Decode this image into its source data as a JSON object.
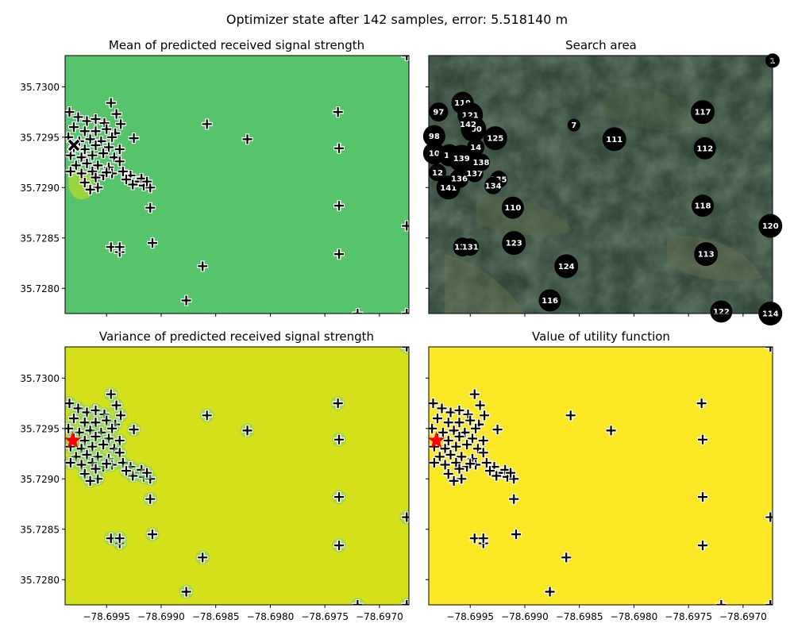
{
  "figure": {
    "suptitle": "Optimizer state after 142 samples, error: 5.518140 m"
  },
  "axes": {
    "xlim": [
      -78.69988,
      -78.69673
    ],
    "ylim": [
      35.72775,
      35.73031
    ],
    "xticks": [
      -78.6995,
      -78.699,
      -78.6985,
      -78.698,
      -78.6975,
      -78.697
    ],
    "xtick_labels": [
      "−78.6995",
      "−78.6990",
      "−78.6985",
      "−78.6980",
      "−78.6975",
      "−78.6970"
    ],
    "yticks": [
      35.728,
      35.7285,
      35.729,
      35.7295,
      35.73
    ],
    "ytick_labels": [
      "35.7280",
      "35.7285",
      "35.7290",
      "35.7295",
      "35.7300"
    ],
    "sharex": true,
    "sharey": true
  },
  "colors": {
    "mean_fill": "#56c46a",
    "variance_fill": "#d4e01a",
    "utility_fill": "#fbe723",
    "mean_blob": "#9bd43c",
    "estimate_star": "#ff0000",
    "prediction_marker": "#000000",
    "satellite_base": "#33493a"
  },
  "chart_data": [
    {
      "type": "heatmap",
      "title": "Mean of predicted received signal strength",
      "background": "mean",
      "markers": [
        "samples-plus",
        "predicted-x"
      ]
    },
    {
      "type": "scatter",
      "title": "Search area",
      "background": "satellite",
      "series": [
        {
          "points": [
            {
              "label": "1",
              "x": -78.69673,
              "y": 35.73026,
              "r": 9
            },
            {
              "label": "7",
              "x": -78.69855,
              "y": 35.72962,
              "r": 8
            },
            {
              "label": "97",
              "x": -78.69979,
              "y": 35.72975,
              "r": 12
            },
            {
              "label": "98",
              "x": -78.69983,
              "y": 35.72951,
              "r": 14
            },
            {
              "label": "100",
              "x": -78.69947,
              "y": 35.72958,
              "r": 16
            },
            {
              "label": "10",
              "x": -78.69983,
              "y": 35.72934,
              "r": 14
            },
            {
              "label": "110",
              "x": -78.69911,
              "y": 35.7288,
              "r": 14
            },
            {
              "label": "111",
              "x": -78.69818,
              "y": 35.72948,
              "r": 15
            },
            {
              "label": "112",
              "x": -78.69735,
              "y": 35.72939,
              "r": 14
            },
            {
              "label": "113",
              "x": -78.69734,
              "y": 35.72834,
              "r": 15
            },
            {
              "label": "114",
              "x": -78.69675,
              "y": 35.72775,
              "r": 15
            },
            {
              "label": "116",
              "x": -78.69877,
              "y": 35.72788,
              "r": 14
            },
            {
              "label": "117",
              "x": -78.69737,
              "y": 35.72975,
              "r": 15
            },
            {
              "label": "118",
              "x": -78.69737,
              "y": 35.72882,
              "r": 14
            },
            {
              "label": "119",
              "x": -78.69957,
              "y": 35.72984,
              "r": 14
            },
            {
              "label": "120",
              "x": -78.69675,
              "y": 35.72862,
              "r": 15
            },
            {
              "label": "121",
              "x": -78.6995,
              "y": 35.72972,
              "r": 16
            },
            {
              "label": "122",
              "x": -78.6972,
              "y": 35.72777,
              "r": 14
            },
            {
              "label": "123",
              "x": -78.6991,
              "y": 35.72845,
              "r": 15
            },
            {
              "label": "124",
              "x": -78.69862,
              "y": 35.72822,
              "r": 15
            },
            {
              "label": "125",
              "x": -78.69927,
              "y": 35.72949,
              "r": 15
            },
            {
              "label": "13",
              "x": -78.69969,
              "y": 35.72932,
              "r": 14
            },
            {
              "label": "139",
              "x": -78.69958,
              "y": 35.72929,
              "r": 17
            },
            {
              "label": "141",
              "x": -78.6997,
              "y": 35.729,
              "r": 15
            },
            {
              "label": "136",
              "x": -78.6996,
              "y": 35.72909,
              "r": 12
            },
            {
              "label": "137",
              "x": -78.69946,
              "y": 35.72914,
              "r": 11
            },
            {
              "label": "135",
              "x": -78.69924,
              "y": 35.72908,
              "r": 11
            },
            {
              "label": "134",
              "x": -78.69929,
              "y": 35.72902,
              "r": 11
            },
            {
              "label": "133",
              "x": -78.69957,
              "y": 35.72841,
              "r": 12
            },
            {
              "label": "131",
              "x": -78.6995,
              "y": 35.72841,
              "r": 11
            },
            {
              "label": "138",
              "x": -78.6994,
              "y": 35.72925,
              "r": 11
            },
            {
              "label": "142",
              "x": -78.69952,
              "y": 35.72963,
              "r": 10
            },
            {
              "label": "14",
              "x": -78.69945,
              "y": 35.7294,
              "r": 11
            },
            {
              "label": "12",
              "x": -78.6998,
              "y": 35.72915,
              "r": 11
            }
          ]
        }
      ]
    },
    {
      "type": "heatmap",
      "title": "Variance of predicted received signal strength",
      "background": "variance",
      "markers": [
        "samples-plus",
        "estimate-star"
      ]
    },
    {
      "type": "heatmap",
      "title": "Value of utility function",
      "background": "utility",
      "markers": [
        "samples-plus",
        "estimate-star"
      ]
    }
  ],
  "samples": [
    [
      -78.69937,
      35.72963
    ],
    [
      -78.69946,
      35.72984
    ],
    [
      -78.69941,
      35.72973
    ],
    [
      -78.69925,
      35.72949
    ],
    [
      -78.69858,
      35.72963
    ],
    [
      -78.69821,
      35.72948
    ],
    [
      -78.69738,
      35.72975
    ],
    [
      -78.69737,
      35.72939
    ],
    [
      -78.69737,
      35.72882
    ],
    [
      -78.6991,
      35.7288
    ],
    [
      -78.69908,
      35.72845
    ],
    [
      -78.69946,
      35.72841
    ],
    [
      -78.69938,
      35.72836
    ],
    [
      -78.69938,
      35.72841
    ],
    [
      -78.69862,
      35.72822
    ],
    [
      -78.69737,
      35.72834
    ],
    [
      -78.69877,
      35.72788
    ],
    [
      -78.6972,
      35.72775
    ],
    [
      -78.69675,
      35.72862
    ],
    [
      -78.69675,
      35.72775
    ],
    [
      -78.69675,
      35.73031
    ],
    [
      -78.69984,
      35.72975
    ],
    [
      -78.69976,
      35.7297
    ],
    [
      -78.69968,
      35.72966
    ],
    [
      -78.6996,
      35.72968
    ],
    [
      -78.69952,
      35.72964
    ],
    [
      -78.6998,
      35.7296
    ],
    [
      -78.6997,
      35.72956
    ],
    [
      -78.6996,
      35.72956
    ],
    [
      -78.6995,
      35.72958
    ],
    [
      -78.69942,
      35.72954
    ],
    [
      -78.69985,
      35.7295
    ],
    [
      -78.69975,
      35.72946
    ],
    [
      -78.69965,
      35.72948
    ],
    [
      -78.69955,
      35.72946
    ],
    [
      -78.69945,
      35.7295
    ],
    [
      -78.6998,
      35.7294
    ],
    [
      -78.6997,
      35.72938
    ],
    [
      -78.6996,
      35.72942
    ],
    [
      -78.69948,
      35.7294
    ],
    [
      -78.69938,
      35.72938
    ],
    [
      -78.69983,
      35.72932
    ],
    [
      -78.69973,
      35.7293
    ],
    [
      -78.69963,
      35.72932
    ],
    [
      -78.69953,
      35.72934
    ],
    [
      -78.69943,
      35.7293
    ],
    [
      -78.69978,
      35.72922
    ],
    [
      -78.69968,
      35.72924
    ],
    [
      -78.69958,
      35.72922
    ],
    [
      -78.69948,
      35.7292
    ],
    [
      -78.69938,
      35.72926
    ],
    [
      -78.69983,
      35.72916
    ],
    [
      -78.69973,
      35.72914
    ],
    [
      -78.69963,
      35.72916
    ],
    [
      -78.69953,
      35.72912
    ],
    [
      -78.69945,
      35.72914
    ],
    [
      -78.69935,
      35.72916
    ],
    [
      -78.69928,
      35.72912
    ],
    [
      -78.69922,
      35.72906
    ],
    [
      -78.69916,
      35.72902
    ],
    [
      -78.6991,
      35.729
    ],
    [
      -78.69918,
      35.72909
    ],
    [
      -78.69926,
      35.72903
    ],
    [
      -78.69913,
      35.72906
    ],
    [
      -78.69932,
      35.72908
    ],
    [
      -78.6997,
      35.72905
    ],
    [
      -78.69958,
      35.729
    ],
    [
      -78.69965,
      35.72898
    ],
    [
      -78.6996,
      35.7291
    ],
    [
      -78.6995,
      35.72915
    ]
  ],
  "estimate": [
    -78.69981,
    35.72938
  ],
  "predicted": [
    -78.6998,
    35.72942
  ]
}
